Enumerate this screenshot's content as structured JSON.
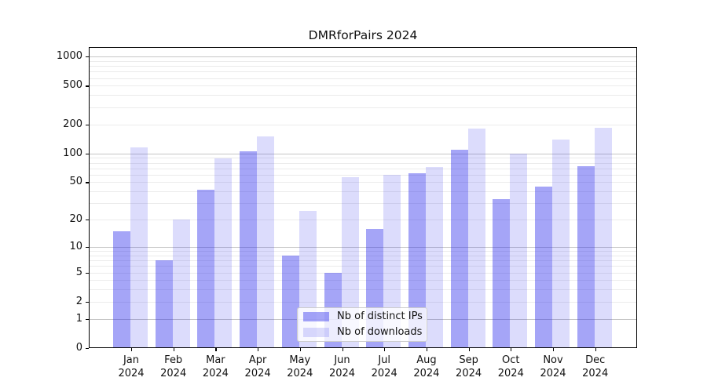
{
  "title": "DMRforPairs 2024",
  "chart_data": {
    "type": "bar",
    "title": "DMRforPairs 2024",
    "categories": [
      "Jan 2024",
      "Feb 2024",
      "Mar 2024",
      "Apr 2024",
      "May 2024",
      "Jun 2024",
      "Jul 2024",
      "Aug 2024",
      "Sep 2024",
      "Oct 2024",
      "Nov 2024",
      "Dec 2024"
    ],
    "series": [
      {
        "name": "Nb of distinct IPs",
        "color": "rgba(40,40,235,0.42)",
        "values": [
          15,
          7,
          42,
          105,
          8,
          5,
          16,
          62,
          110,
          33,
          45,
          73
        ]
      },
      {
        "name": "Nb of downloads",
        "color": "rgba(40,40,235,0.16)",
        "values": [
          115,
          20,
          88,
          150,
          25,
          57,
          60,
          72,
          180,
          100,
          140,
          185
        ]
      }
    ],
    "xlabel": "",
    "ylabel": "",
    "y_ticks": [
      0,
      1,
      2,
      5,
      10,
      20,
      50,
      100,
      200,
      500,
      1000
    ],
    "y_scale": "log10(value+1)",
    "ylim": [
      0,
      1257
    ],
    "grid": "horizontal, log major and minor lines",
    "legend_position": "lower center inside plot"
  },
  "colors": {
    "bar_distinct_ips": "rgba(40,40,235,0.42)",
    "bar_downloads": "rgba(40,40,235,0.16)",
    "grid_major": "#c6c6c6",
    "grid_minor": "#ebebeb",
    "axis": "#000000"
  }
}
